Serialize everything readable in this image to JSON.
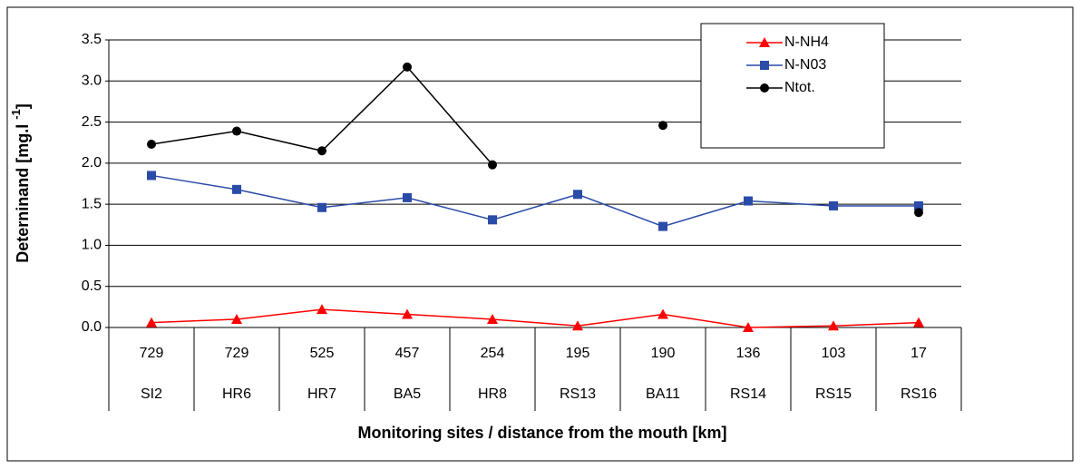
{
  "chart_data": {
    "type": "line",
    "ylabel": "Deterninand [mg.l ",
    "ylabel_sup": "-1",
    "ylabel_end": "]",
    "xlabel": "Monitoring sites / distance from the mouth [km]",
    "distances": [
      729,
      729,
      525,
      457,
      254,
      195,
      190,
      136,
      103,
      17
    ],
    "categories": [
      "SI2",
      "HR6",
      "HR7",
      "BA5",
      "HR8",
      "RS13",
      "BA11",
      "RS14",
      "RS15",
      "RS16"
    ],
    "series": [
      {
        "name": "N-NH4",
        "color": "#ff0000",
        "marker": "triangle",
        "values": [
          0.06,
          0.1,
          0.22,
          0.16,
          0.1,
          0.02,
          0.16,
          0.0,
          0.02,
          0.06
        ]
      },
      {
        "name": "N-N03",
        "color": "#2a4ba8",
        "marker": "square",
        "values": [
          1.85,
          1.68,
          1.46,
          1.58,
          1.31,
          1.62,
          1.23,
          1.54,
          1.48,
          1.48
        ]
      },
      {
        "name": "Ntot.",
        "color": "#000000",
        "marker": "circle",
        "values": [
          2.23,
          2.39,
          2.15,
          3.17,
          1.98,
          null,
          2.46,
          null,
          null,
          1.4
        ]
      }
    ],
    "ylim": [
      0,
      3.5
    ],
    "yticks": [
      {
        "value": 0,
        "label": "0.0"
      },
      {
        "value": 0.5,
        "label": "0.5"
      },
      {
        "value": 1,
        "label": "1.0"
      },
      {
        "value": 1.5,
        "label": "1.5"
      },
      {
        "value": 2,
        "label": "2.0"
      },
      {
        "value": 2.5,
        "label": "2.5"
      },
      {
        "value": 3,
        "label": "3.0"
      },
      {
        "value": 3.5,
        "label": "3.5"
      }
    ],
    "grid": true,
    "legend_position": "top-right"
  }
}
